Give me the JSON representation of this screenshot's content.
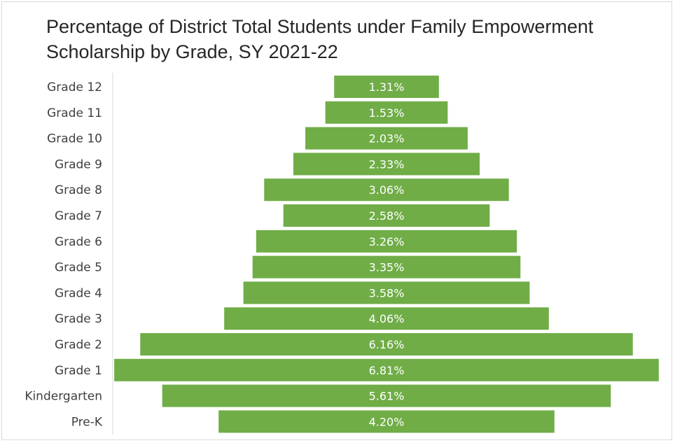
{
  "chart_data": {
    "type": "bar",
    "orientation": "horizontal",
    "layout": "centered",
    "title": "Percentage of District Total Students under Family Empowerment Scholarship by Grade, SY 2021-22",
    "categories": [
      "Grade 12",
      "Grade 11",
      "Grade 10",
      "Grade 9",
      "Grade 8",
      "Grade 7",
      "Grade 6",
      "Grade 5",
      "Grade 4",
      "Grade 3",
      "Grade 2",
      "Grade 1",
      "Kindergarten",
      "Pre-K"
    ],
    "values": [
      1.31,
      1.53,
      2.03,
      2.33,
      3.06,
      2.58,
      3.26,
      3.35,
      3.58,
      4.06,
      6.16,
      6.81,
      5.61,
      4.2
    ],
    "value_labels": [
      "1.31%",
      "1.53%",
      "2.03%",
      "2.33%",
      "3.06%",
      "2.58%",
      "3.26%",
      "3.35%",
      "3.58%",
      "4.06%",
      "6.16%",
      "6.81%",
      "5.61%",
      "4.20%"
    ],
    "bar_color": "#70ad47",
    "label_color": "#ffffff",
    "axis_color": "#d9d9d9",
    "grid": false,
    "legend": "none"
  }
}
